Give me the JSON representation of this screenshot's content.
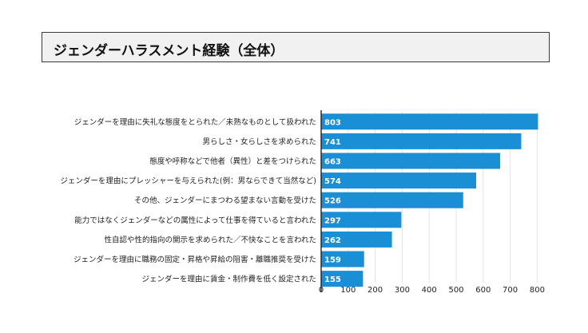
{
  "page_title": "ジェンダーハラスメント経験（全体）",
  "chart_data": {
    "type": "bar",
    "orientation": "horizontal",
    "title": "ジェンダーハラスメント経験（全体）",
    "xlabel": "",
    "ylabel": "",
    "xlim": [
      0,
      800
    ],
    "xticks": [
      0,
      100,
      200,
      300,
      400,
      500,
      600,
      700,
      800
    ],
    "bar_color": "#1a8fd6",
    "grid": true,
    "categories": [
      "ジェンダーを理由に失礼な態度をとられた／未熟なものとして扱われた",
      "男らしさ・女らしさを求められた",
      "態度や呼称などで他者（異性）と差をつけられた",
      "ジェンダーを理由にプレッシャーを与えられた(例：男ならできて当然など)",
      "その他、ジェンダーにまつわる望まない言動を受けた",
      "能力ではなくジェンダーなどの属性によって仕事を得ていると言われた",
      "性自認や性的指向の開示を求められた／不快なことを言われた",
      "ジェンダーを理由に職務の固定・昇格や昇給の阻害・離職推奨を受けた",
      "ジェンダーを理由に賃金・制作費を低く設定された"
    ],
    "values": [
      803,
      741,
      663,
      574,
      526,
      297,
      262,
      159,
      155
    ]
  }
}
